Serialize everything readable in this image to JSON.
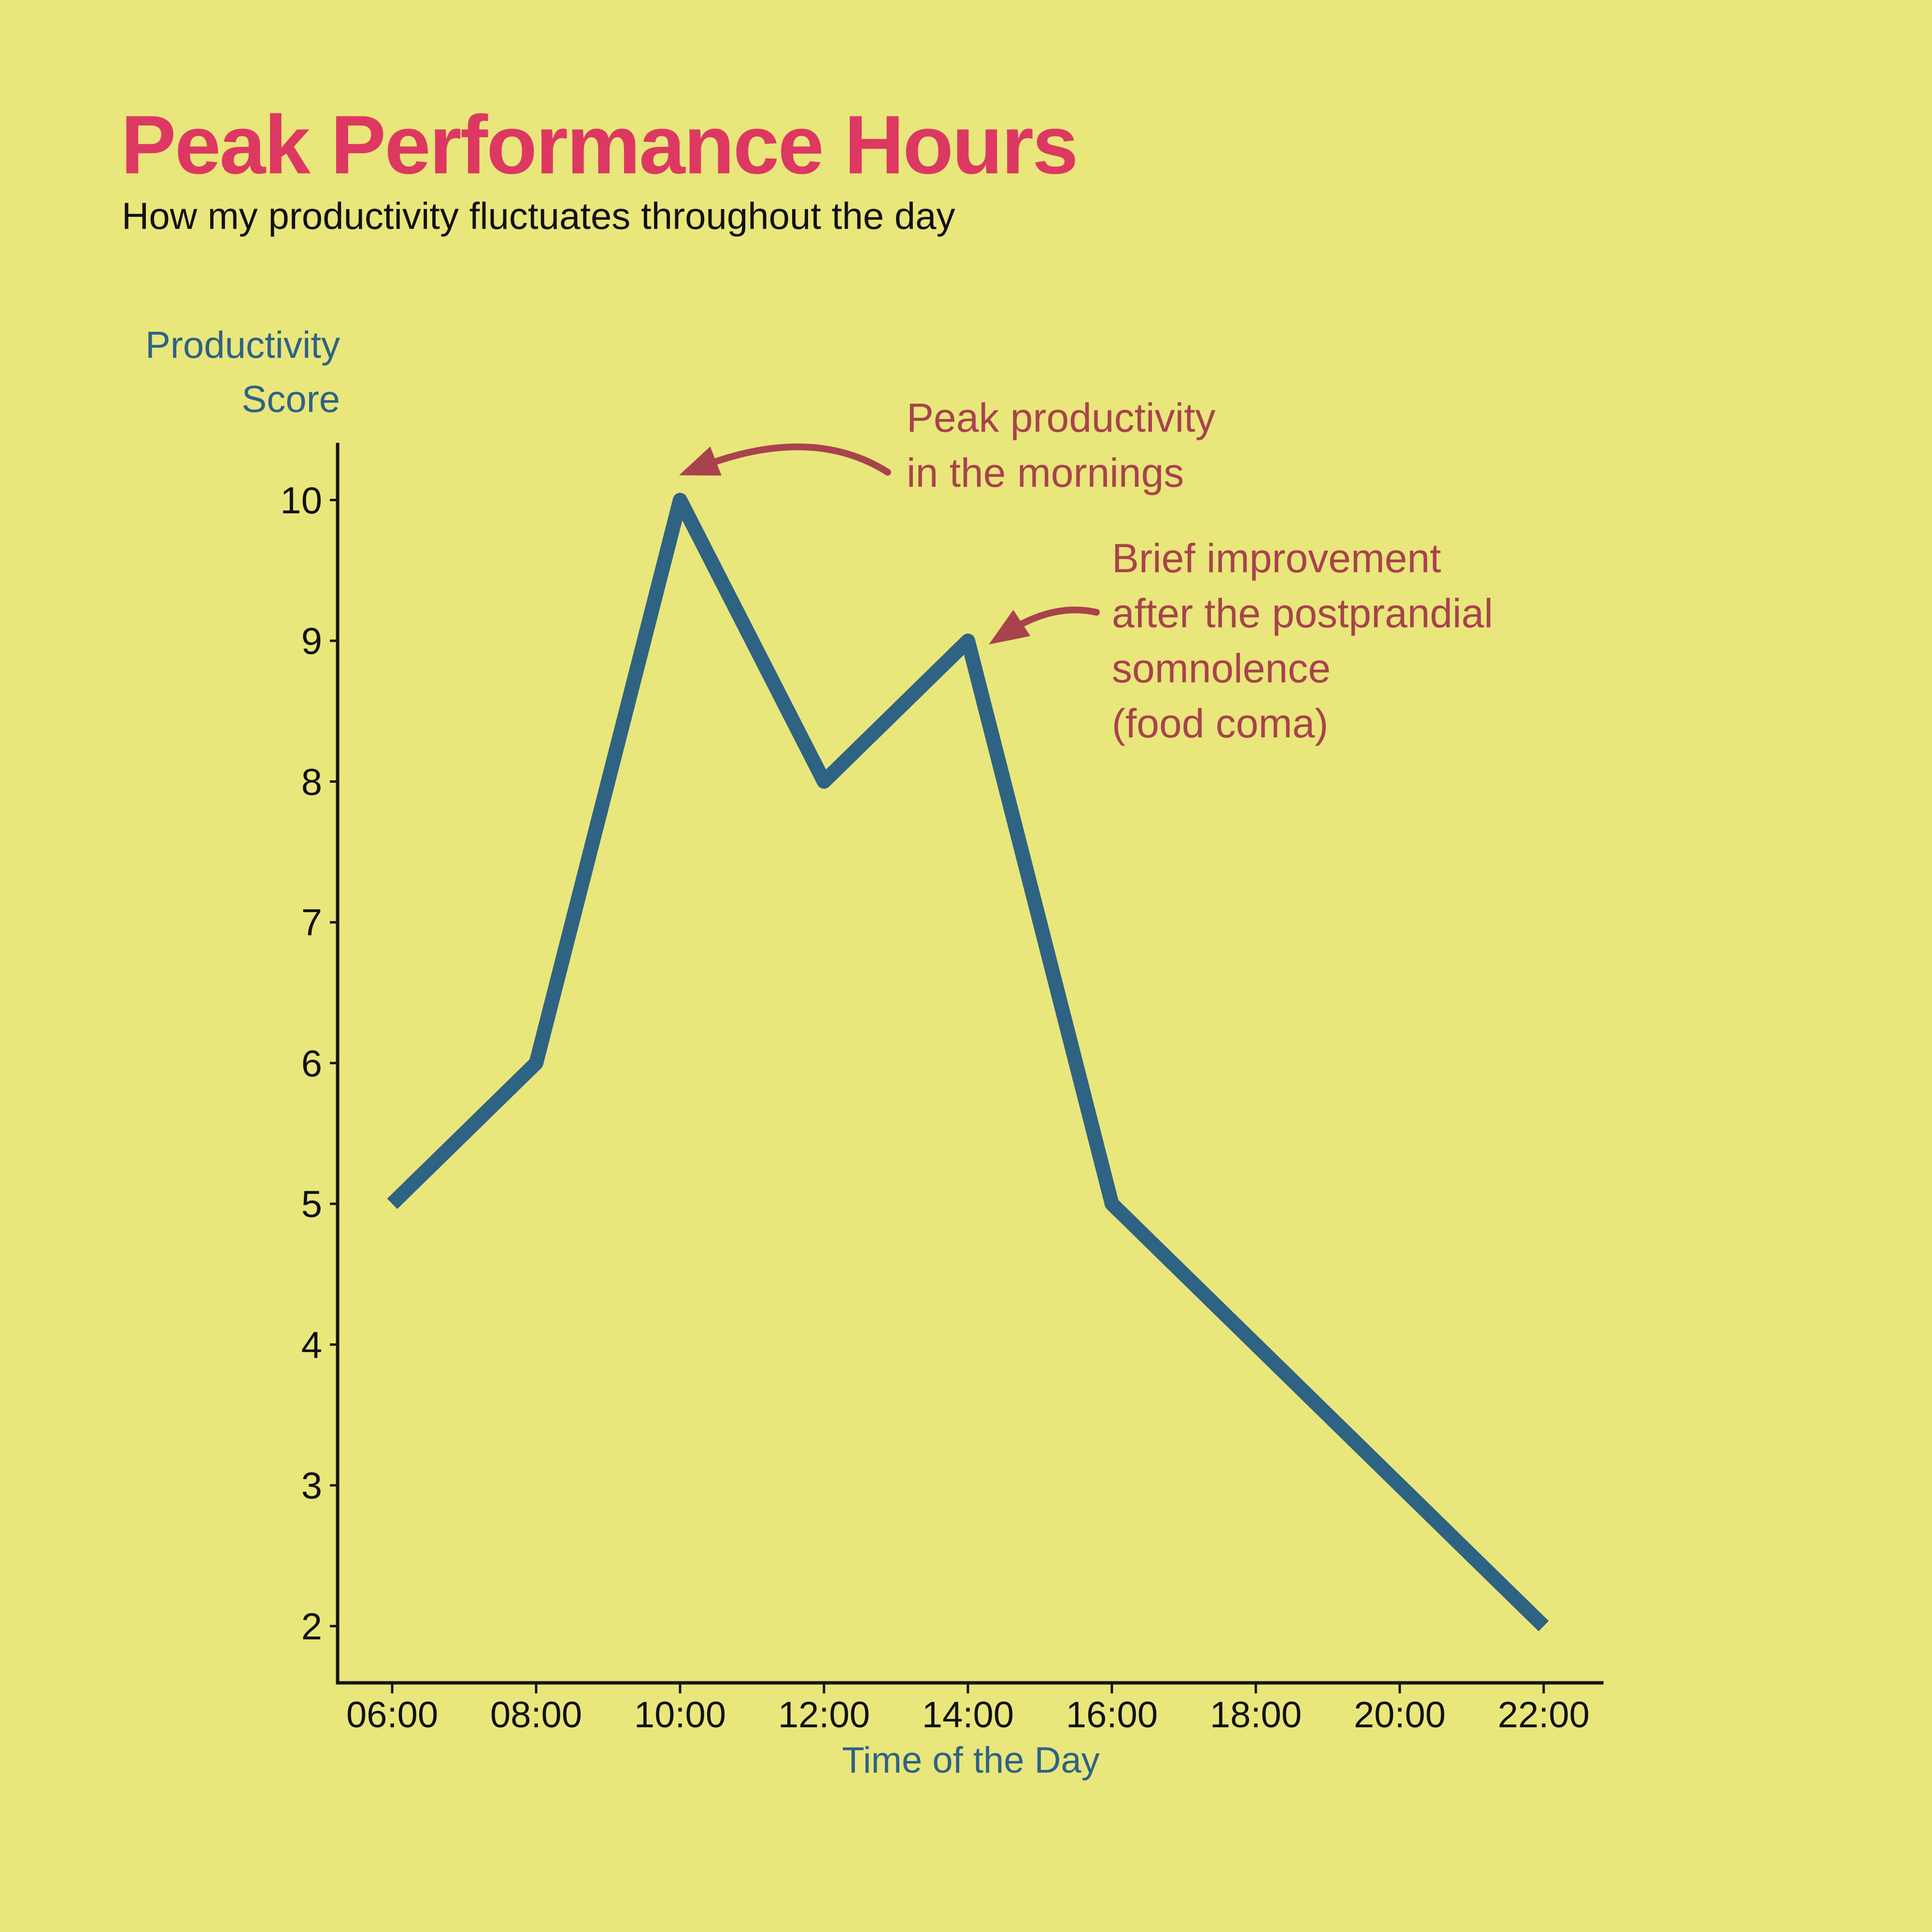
{
  "page": {
    "title": "Peak Performance Hours",
    "subtitle": "How my productivity fluctuates throughout the day"
  },
  "colors": {
    "background": "#E9E77B",
    "title": "#DC3862",
    "subtitle": "#111111",
    "line": "#2E6384",
    "axis": "#151515",
    "tick_label": "#111111",
    "axis_label": "#2E6386",
    "annotation": "#A8424C"
  },
  "chart_data": {
    "type": "line",
    "x": [
      "06:00",
      "08:00",
      "10:00",
      "12:00",
      "14:00",
      "16:00",
      "18:00",
      "20:00",
      "22:00"
    ],
    "values": [
      5,
      6,
      10,
      8,
      9,
      5,
      4,
      3,
      2
    ],
    "title": "Peak Performance Hours",
    "subtitle": "How my productivity fluctuates throughout the day",
    "xlabel": "Time of the Day",
    "ylabel_lines": [
      "Productivity",
      "Score"
    ],
    "y_ticks": [
      2,
      3,
      4,
      5,
      6,
      7,
      8,
      9,
      10
    ],
    "ylim": [
      1.6,
      10.4
    ],
    "grid": false,
    "legend": false,
    "annotations": [
      {
        "text_lines": [
          "Peak productivity",
          "in the mornings"
        ],
        "points_to": {
          "x": "10:00",
          "y": 10
        }
      },
      {
        "text_lines": [
          "Brief improvement",
          "after the postprandial",
          "somnolence",
          "(food coma)"
        ],
        "points_to": {
          "x": "14:00",
          "y": 9
        }
      }
    ]
  }
}
